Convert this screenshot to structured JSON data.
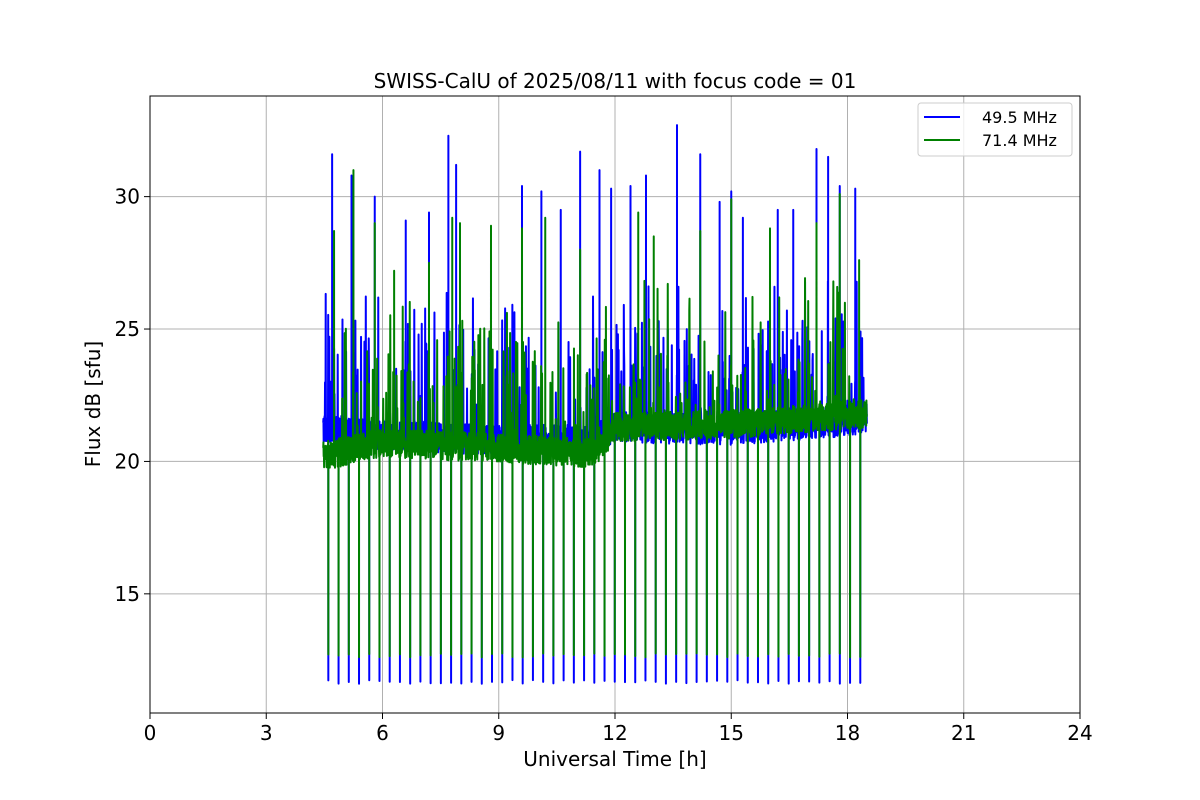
{
  "chart_data": {
    "type": "line",
    "title": "SWISS-CalU of 2025/08/11 with focus code = 01",
    "xlabel": "Universal Time [h]",
    "ylabel": "Flux dB [sfu]",
    "xlim": [
      0,
      24
    ],
    "ylim": [
      10.5,
      33.8
    ],
    "xticks": [
      0,
      3,
      6,
      9,
      12,
      15,
      18,
      21,
      24
    ],
    "yticks": [
      15,
      20,
      25,
      30
    ],
    "grid": true,
    "legend_position": "upper-right",
    "time_range": [
      4.47,
      18.5
    ],
    "sweep_period": 0.264,
    "series": [
      {
        "name": "49.5 MHz",
        "color": "#0000ff",
        "baseline": [
          [
            4.47,
            21.2
          ],
          [
            6.0,
            21.0
          ],
          [
            9.0,
            20.8
          ],
          [
            11.5,
            20.8
          ],
          [
            12.0,
            21.3
          ],
          [
            15.0,
            21.2
          ],
          [
            18.5,
            21.6
          ]
        ],
        "noise_band": [
          20.4,
          23.0
        ],
        "dropout_min": 11.6,
        "spike_times": [
          4.7,
          5.2,
          5.8,
          6.6,
          7.2,
          7.7,
          7.9,
          8.8,
          9.6,
          10.1,
          10.6,
          11.1,
          11.6,
          11.9,
          12.4,
          12.8,
          13.6,
          14.2,
          14.7,
          15.0,
          15.3,
          16.2,
          16.6,
          17.2,
          17.5,
          17.8,
          18.2
        ],
        "spike_values": [
          31.6,
          30.8,
          30.0,
          29.1,
          29.4,
          32.3,
          31.2,
          28.8,
          30.4,
          30.2,
          29.5,
          31.7,
          31.0,
          30.3,
          30.4,
          30.8,
          32.7,
          31.6,
          29.8,
          30.2,
          29.2,
          29.5,
          29.5,
          31.8,
          31.5,
          30.4,
          30.3
        ]
      },
      {
        "name": "71.4 MHz",
        "color": "#008000",
        "baseline": [
          [
            4.47,
            20.2
          ],
          [
            6.0,
            20.7
          ],
          [
            9.0,
            20.5
          ],
          [
            11.5,
            20.3
          ],
          [
            12.0,
            21.3
          ],
          [
            15.0,
            21.4
          ],
          [
            18.5,
            21.8
          ]
        ],
        "noise_band": [
          19.8,
          22.2
        ],
        "dropout_min": 12.6,
        "spike_times": [
          4.75,
          5.25,
          5.8,
          6.3,
          7.2,
          7.8,
          8.0,
          8.8,
          9.6,
          10.2,
          11.1,
          12.6,
          13.0,
          14.2,
          15.0,
          16.0,
          17.2,
          17.8,
          18.3
        ],
        "spike_values": [
          28.7,
          31.0,
          29.0,
          27.2,
          27.5,
          29.2,
          29.0,
          28.9,
          28.8,
          29.2,
          28.0,
          29.4,
          28.5,
          28.7,
          29.9,
          28.8,
          29.0,
          30.1,
          27.6
        ]
      }
    ]
  }
}
